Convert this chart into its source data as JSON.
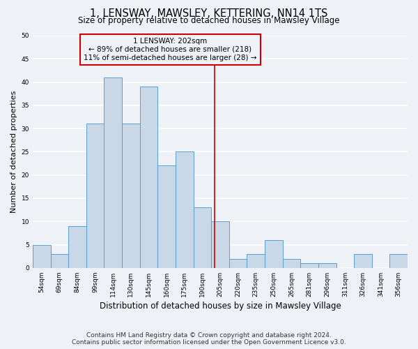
{
  "title": "1, LENSWAY, MAWSLEY, KETTERING, NN14 1TS",
  "subtitle": "Size of property relative to detached houses in Mawsley Village",
  "xlabel": "Distribution of detached houses by size in Mawsley Village",
  "ylabel": "Number of detached properties",
  "categories": [
    "54sqm",
    "69sqm",
    "84sqm",
    "99sqm",
    "114sqm",
    "130sqm",
    "145sqm",
    "160sqm",
    "175sqm",
    "190sqm",
    "205sqm",
    "220sqm",
    "235sqm",
    "250sqm",
    "265sqm",
    "281sqm",
    "296sqm",
    "311sqm",
    "326sqm",
    "341sqm",
    "356sqm"
  ],
  "values": [
    5,
    3,
    9,
    31,
    41,
    31,
    39,
    22,
    25,
    13,
    10,
    2,
    3,
    6,
    2,
    1,
    1,
    0,
    3,
    0,
    3
  ],
  "bar_color": "#c8d8e8",
  "bar_edge_color": "#5a9fd4",
  "ylim": [
    0,
    50
  ],
  "yticks": [
    0,
    5,
    10,
    15,
    20,
    25,
    30,
    35,
    40,
    45,
    50
  ],
  "vline_x_index": 9.67,
  "vline_color": "#cc0000",
  "annotation_title": "1 LENSWAY: 202sqm",
  "annotation_line1": "← 89% of detached houses are smaller (218)",
  "annotation_line2": "11% of semi-detached houses are larger (28) →",
  "annotation_box_color": "#cc0000",
  "footer_line1": "Contains HM Land Registry data © Crown copyright and database right 2024.",
  "footer_line2": "Contains public sector information licensed under the Open Government Licence v3.0.",
  "background_color": "#eef2f7",
  "grid_color": "#ffffff",
  "title_fontsize": 10.5,
  "subtitle_fontsize": 8.5,
  "xlabel_fontsize": 8.5,
  "ylabel_fontsize": 8,
  "tick_fontsize": 6.5,
  "footer_fontsize": 6.5,
  "ann_fontsize": 7.5
}
